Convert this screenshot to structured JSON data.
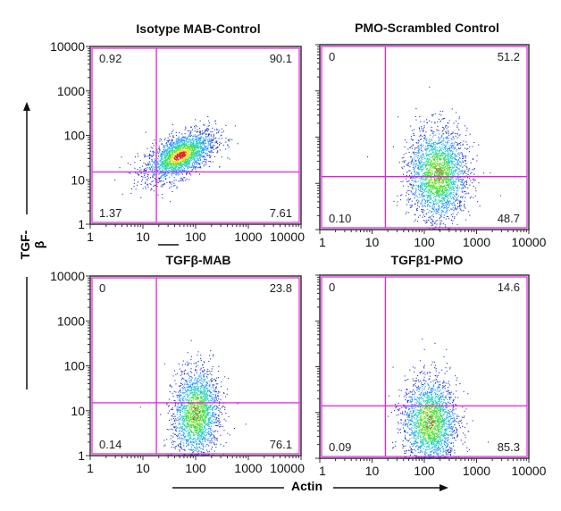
{
  "chart_data": [
    {
      "type": "scatter",
      "title": "Isotype MAB-Control",
      "xscale": "log",
      "yscale": "log",
      "xlim": [
        1,
        10000
      ],
      "ylim": [
        1,
        10000
      ],
      "xticks": [
        "1",
        "10",
        "100",
        "1000",
        "10000"
      ],
      "yticks": [
        "1",
        "10",
        "100",
        "1000",
        "10000"
      ],
      "gate": {
        "x": 18,
        "y": 15
      },
      "quadrants": {
        "UL": "0.92",
        "UR": "90.1",
        "LL": "1.37",
        "LR": "7.61"
      }
    },
    {
      "type": "scatter",
      "title": "PMO-Scrambled Control",
      "xscale": "log",
      "yscale": "log",
      "xlim": [
        1,
        10000
      ],
      "ylim": [
        1,
        10000
      ],
      "xticks": [
        "1",
        "10",
        "100",
        "1000",
        "10000"
      ],
      "yticks": [],
      "gate": {
        "x": 18,
        "y": 14
      },
      "quadrants": {
        "UL": "0",
        "UR": "51.2",
        "LL": "0.10",
        "LR": "48.7"
      }
    },
    {
      "type": "scatter",
      "title": "TGFβ-MAB",
      "xscale": "log",
      "yscale": "log",
      "xlim": [
        1,
        10000
      ],
      "ylim": [
        1,
        10000
      ],
      "xticks": [
        "1",
        "10",
        "100",
        "1000",
        "10000"
      ],
      "yticks": [
        "1",
        "10",
        "100",
        "1000",
        "10000"
      ],
      "gate": {
        "x": 18,
        "y": 15
      },
      "quadrants": {
        "UL": "0",
        "UR": "23.8",
        "LL": "0.14",
        "LR": "76.1"
      }
    },
    {
      "type": "scatter",
      "title": "TGFβ1-PMO",
      "xscale": "log",
      "yscale": "log",
      "xlim": [
        1,
        10000
      ],
      "ylim": [
        1,
        10000
      ],
      "xticks": [
        "1",
        "10",
        "100",
        "1000",
        "10000"
      ],
      "yticks": [],
      "gate": {
        "x": 18,
        "y": 14
      },
      "quadrants": {
        "UL": "0",
        "UR": "14.6",
        "LL": "0.09",
        "LR": "85.3"
      }
    }
  ],
  "axes": {
    "ylabel": "TGF-β",
    "xlabel": "Actin"
  },
  "colors": {
    "gate": "#e020e0",
    "density": [
      "#1a2fd0",
      "#1e90ff",
      "#20d0c0",
      "#40e040",
      "#f0e020",
      "#e02020"
    ]
  }
}
